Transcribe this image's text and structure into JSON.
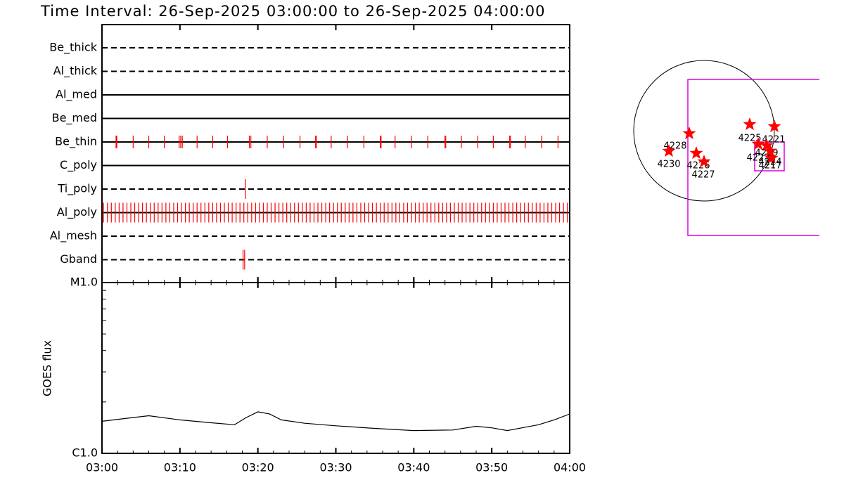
{
  "title": "Time Interval: 26-Sep-2025 03:00:00 to 26-Sep-2025 04:00:00",
  "chart_data": [
    {
      "type": "timeline",
      "categories": [
        "Be_thick",
        "Al_thick",
        "Al_med",
        "Be_med",
        "Be_thin",
        "C_poly",
        "Ti_poly",
        "Al_poly",
        "Al_mesh",
        "Gband"
      ],
      "line_styles": [
        "dashed",
        "dashed",
        "solid",
        "solid",
        "solid",
        "solid",
        "dashed",
        "solid",
        "dashed",
        "dashed"
      ],
      "color": "#ff0000",
      "events": [
        [],
        [],
        [],
        [],
        [
          1.8,
          1.9,
          4.0,
          6.0,
          8.0,
          9.9,
          10.1,
          10.3,
          12.2,
          14.2,
          16.1,
          18.9,
          19.1,
          21.2,
          23.3,
          25.4,
          27.4,
          27.5,
          29.4,
          31.5,
          33.6,
          35.7,
          35.8,
          37.6,
          39.7,
          41.8,
          44.0,
          44.1,
          46.1,
          48.2,
          50.2,
          52.3,
          52.4,
          54.3,
          56.4,
          58.5
        ],
        [],
        [
          18.4
        ],
        [
          0.2,
          0.7,
          1.2,
          1.7,
          2.2,
          2.7,
          3.2,
          3.7,
          4.2,
          4.7,
          5.2,
          5.7,
          6.2,
          6.7,
          7.2,
          7.7,
          8.2,
          8.7,
          9.2,
          9.7,
          10.2,
          10.7,
          11.2,
          11.7,
          12.2,
          12.7,
          13.2,
          13.7,
          14.2,
          14.7,
          15.2,
          15.7,
          16.2,
          16.7,
          17.2,
          17.7,
          18.2,
          18.7,
          19.2,
          19.7,
          20.2,
          20.7,
          21.2,
          21.7,
          22.2,
          22.7,
          23.2,
          23.7,
          24.2,
          24.7,
          25.2,
          25.7,
          26.2,
          26.7,
          27.2,
          27.7,
          28.2,
          28.7,
          29.2,
          29.7,
          30.2,
          30.7,
          31.2,
          31.7,
          32.2,
          32.7,
          33.2,
          33.7,
          34.2,
          34.7,
          35.2,
          35.7,
          36.2,
          36.7,
          37.2,
          37.7,
          38.2,
          38.7,
          39.2,
          39.7,
          40.2,
          40.7,
          41.2,
          41.7,
          42.2,
          42.7,
          43.2,
          43.7,
          44.2,
          44.7,
          45.2,
          45.7,
          46.2,
          46.7,
          47.2,
          47.7,
          48.2,
          48.7,
          49.2,
          49.7,
          50.2,
          50.7,
          51.2,
          51.7,
          52.2,
          52.7,
          53.2,
          53.7,
          54.2,
          54.7,
          55.2,
          55.7,
          56.2,
          56.7,
          57.2,
          57.7,
          58.2,
          58.7,
          59.2,
          59.7
        ],
        [],
        [
          18.1,
          18.3
        ]
      ],
      "xlim": [
        0,
        60
      ]
    },
    {
      "type": "line",
      "y_label": "GOES flux",
      "x": [
        0,
        3,
        6,
        10,
        14,
        17,
        18.5,
        20,
        21.5,
        23,
        26,
        30,
        35,
        40,
        45,
        48,
        50,
        52,
        56,
        58,
        60
      ],
      "values": [
        1.54e-06,
        1.6e-06,
        1.66e-06,
        1.57e-06,
        1.51e-06,
        1.47e-06,
        1.62e-06,
        1.75e-06,
        1.7e-06,
        1.57e-06,
        1.5e-06,
        1.45e-06,
        1.4e-06,
        1.36e-06,
        1.37e-06,
        1.44e-06,
        1.41e-06,
        1.36e-06,
        1.47e-06,
        1.57e-06,
        1.7e-06
      ],
      "color": "#000000",
      "log_scale": true,
      "xlim": [
        0,
        60
      ],
      "xticks": [
        {
          "value": 0,
          "label": "03:00"
        },
        {
          "value": 10,
          "label": "03:10"
        },
        {
          "value": 20,
          "label": "03:20"
        },
        {
          "value": 30,
          "label": "03:30"
        },
        {
          "value": 40,
          "label": "03:40"
        },
        {
          "value": 50,
          "label": "03:50"
        },
        {
          "value": 60,
          "label": "04:00"
        }
      ],
      "ylim": [
        1e-06,
        1e-05
      ],
      "yticks": [
        {
          "value": 1e-06,
          "label": "C1.0"
        },
        {
          "value": 1e-05,
          "label": "M1.0"
        }
      ]
    }
  ],
  "map": {
    "regions": [
      "4228",
      "4230",
      "4226",
      "4227",
      "4225",
      "4221",
      "4223",
      "4229",
      "4224",
      "4217"
    ]
  }
}
